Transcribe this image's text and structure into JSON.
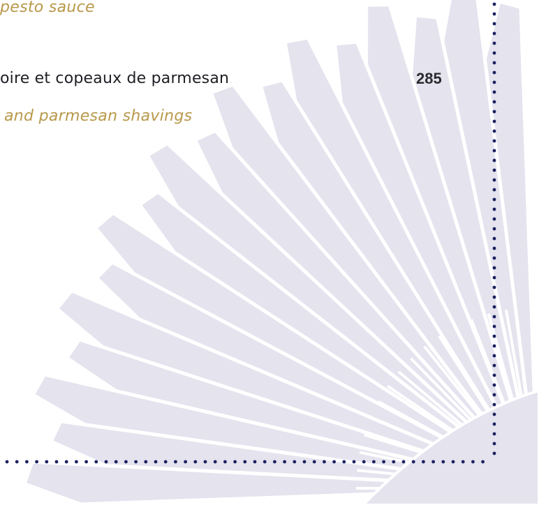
{
  "menu": {
    "items": [
      {
        "description_en": "pesto sauce"
      },
      {
        "name_fr": "oire et copeaux de parmesan",
        "price": "285",
        "description_en": "and parmesan shavings"
      }
    ]
  }
}
